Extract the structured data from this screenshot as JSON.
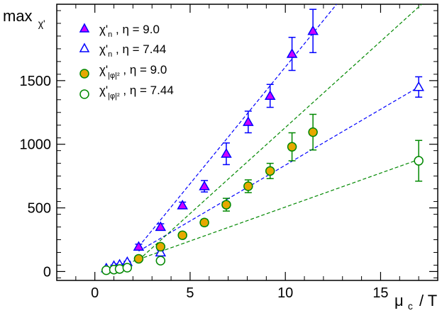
{
  "chart_data": {
    "type": "scatter",
    "xlim": [
      -2,
      18
    ],
    "ylim": [
      -70,
      2100
    ],
    "x_ticks": [
      0,
      5,
      10,
      15
    ],
    "y_ticks": [
      0,
      500,
      1000,
      1500
    ],
    "x_tick_labels": [
      "0",
      "5",
      "10",
      "15"
    ],
    "y_tick_labels": [
      "0",
      "500",
      "1000",
      "1500"
    ],
    "ylabel": {
      "main": "max",
      "sub": "χ'"
    },
    "xlabel": {
      "mu": "μ",
      "sub": "c",
      "rest": "/ T"
    },
    "grid": false,
    "legend_position": "top-left",
    "series": [
      {
        "name": "χ'n , η = 9.0",
        "legend": {
          "symbol": "χ'",
          "sub": "n",
          "suffix": " ,   η = 9.0"
        },
        "marker": "triangle",
        "filled": true,
        "color": "#0000ff",
        "fill": "#cc00ff",
        "points": [
          {
            "x": 2.3,
            "y": 195,
            "err": 20
          },
          {
            "x": 3.45,
            "y": 350,
            "err": 25
          },
          {
            "x": 4.6,
            "y": 520,
            "err": 25
          },
          {
            "x": 5.75,
            "y": 670,
            "err": 45
          },
          {
            "x": 6.9,
            "y": 925,
            "err": 85
          },
          {
            "x": 8.05,
            "y": 1175,
            "err": 85
          },
          {
            "x": 9.2,
            "y": 1380,
            "err": 90
          },
          {
            "x": 10.35,
            "y": 1710,
            "err": 130
          },
          {
            "x": 11.45,
            "y": 1890,
            "err": 170
          }
        ],
        "fit_line": {
          "x": [
            2.3,
            12.8
          ],
          "y": [
            195,
            2120
          ]
        }
      },
      {
        "name": "χ'n , η = 7.44",
        "legend": {
          "symbol": "χ'",
          "sub": "n",
          "suffix": " ,   η = 7.44"
        },
        "marker": "triangle",
        "filled": false,
        "color": "#0000ff",
        "points": [
          {
            "x": 0.6,
            "y": 25,
            "err": 5
          },
          {
            "x": 1.0,
            "y": 45,
            "err": 5
          },
          {
            "x": 1.3,
            "y": 55,
            "err": 5
          },
          {
            "x": 1.7,
            "y": 75,
            "err": 5
          },
          {
            "x": 3.45,
            "y": 150,
            "err": 15
          },
          {
            "x": 17.0,
            "y": 1450,
            "err": 80
          }
        ],
        "fit_line": {
          "x": [
            2.3,
            17.0
          ],
          "y": [
            160,
            1450
          ]
        }
      },
      {
        "name": "χ'|φ|² , η = 9.0",
        "legend": {
          "symbol": "χ'",
          "sub": "|φ|²",
          "suffix": " , η = 9.0"
        },
        "marker": "circle",
        "filled": true,
        "color": "#008800",
        "fill": "#e6a800",
        "points": [
          {
            "x": 2.3,
            "y": 100,
            "err": 10
          },
          {
            "x": 3.45,
            "y": 195,
            "err": 15
          },
          {
            "x": 4.6,
            "y": 285,
            "err": 20
          },
          {
            "x": 5.75,
            "y": 385,
            "err": 25
          },
          {
            "x": 6.9,
            "y": 525,
            "err": 50
          },
          {
            "x": 8.05,
            "y": 670,
            "err": 50
          },
          {
            "x": 9.2,
            "y": 790,
            "err": 60
          },
          {
            "x": 10.35,
            "y": 980,
            "err": 110
          },
          {
            "x": 11.45,
            "y": 1095,
            "err": 140
          }
        ],
        "fit_line": {
          "x": [
            2.3,
            17.6
          ],
          "y": [
            90,
            2160
          ]
        }
      },
      {
        "name": "χ'|φ|² , η = 7.44",
        "legend": {
          "symbol": "χ'",
          "sub": "|φ|²",
          "suffix": " , η = 7.44"
        },
        "marker": "circle",
        "filled": false,
        "color": "#008800",
        "points": [
          {
            "x": 0.6,
            "y": 10,
            "err": 5
          },
          {
            "x": 1.0,
            "y": 15,
            "err": 5
          },
          {
            "x": 1.3,
            "y": 20,
            "err": 5
          },
          {
            "x": 1.7,
            "y": 30,
            "err": 5
          },
          {
            "x": 3.45,
            "y": 85,
            "err": 10
          },
          {
            "x": 17.0,
            "y": 870,
            "err": 160
          }
        ],
        "fit_line": {
          "x": [
            0.6,
            17.0
          ],
          "y": [
            5,
            880
          ]
        }
      }
    ]
  }
}
